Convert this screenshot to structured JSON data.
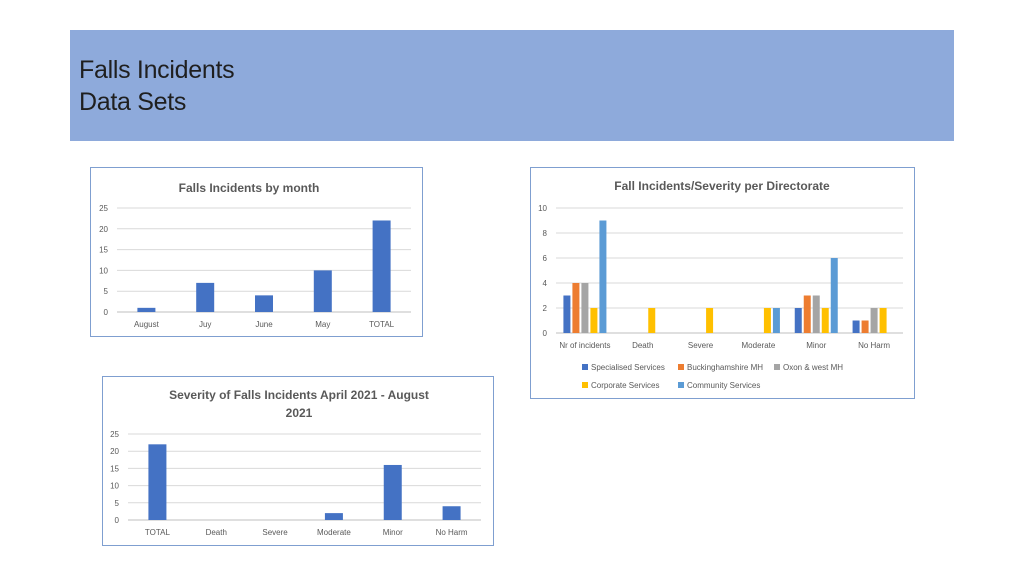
{
  "header": {
    "title": "Falls Incidents\nData Sets",
    "background": "#8eaadb"
  },
  "colors": {
    "bar": "#4472c4",
    "series": [
      "#4472c4",
      "#ed7d31",
      "#a5a5a5",
      "#ffc000",
      "#5b9bd5"
    ]
  },
  "chart_data": [
    {
      "type": "bar",
      "title": "Falls Incidents by month",
      "categories": [
        "August",
        "Juy",
        "June",
        "May",
        "TOTAL"
      ],
      "values": [
        1,
        7,
        4,
        10,
        22
      ],
      "ylim": [
        0,
        25
      ],
      "yticks": [
        0,
        5,
        10,
        15,
        20,
        25
      ],
      "grid": true,
      "legend": "none"
    },
    {
      "type": "bar",
      "title": "Fall Incidents/Severity per Directorate",
      "categories": [
        "Nr of incidents",
        "Death",
        "Severe",
        "Moderate",
        "Minor",
        "No Harm"
      ],
      "series": [
        {
          "name": "Specialised Services",
          "values": [
            3,
            0,
            0,
            0,
            2,
            1
          ]
        },
        {
          "name": "Buckinghamshire MH",
          "values": [
            4,
            0,
            0,
            0,
            3,
            1
          ]
        },
        {
          "name": "Oxon & west MH",
          "values": [
            4,
            0,
            0,
            0,
            3,
            2
          ]
        },
        {
          "name": "Corporate Services",
          "values": [
            2,
            2,
            2,
            2,
            2,
            2
          ]
        },
        {
          "name": "Community Services",
          "values": [
            9,
            0,
            0,
            2,
            6,
            0
          ]
        }
      ],
      "ylim": [
        0,
        10
      ],
      "yticks": [
        0,
        2,
        4,
        6,
        8,
        10
      ],
      "grid": true,
      "legend": "bottom"
    },
    {
      "type": "bar",
      "title": "Severity of Falls Incidents April 2021 - August\n2021",
      "categories": [
        "TOTAL",
        "Death",
        "Severe",
        "Moderate",
        "Minor",
        "No Harm"
      ],
      "values": [
        22,
        0,
        0,
        2,
        16,
        4
      ],
      "ylim": [
        0,
        25
      ],
      "yticks": [
        0,
        5,
        10,
        15,
        20,
        25
      ],
      "grid": true,
      "legend": "none"
    }
  ]
}
